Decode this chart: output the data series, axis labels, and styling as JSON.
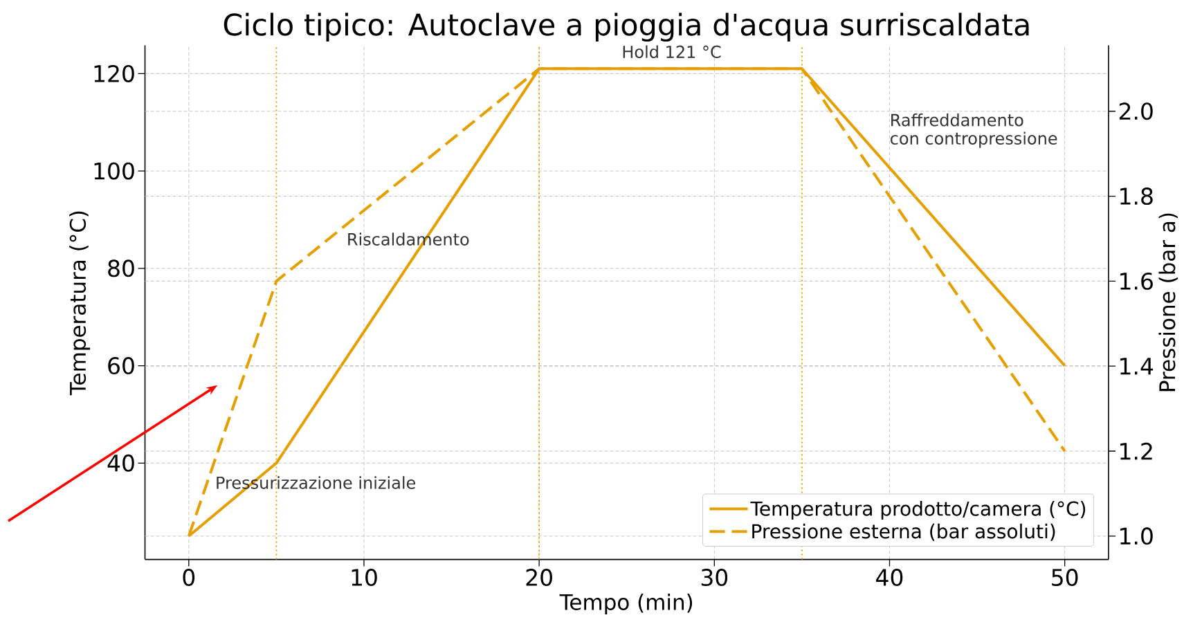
{
  "chart_data": {
    "type": "line",
    "title": "Ciclo tipico: Autoclave a pioggia d'acqua surriscaldata",
    "xlabel": "Tempo (min)",
    "ylabel": "Temperatura (°C)",
    "y2label": "Pressione (bar a)",
    "x": [
      0,
      5,
      20,
      35,
      50
    ],
    "series": [
      {
        "name": "Temperatura prodotto/camera (°C)",
        "color": "#e69f00",
        "line_style": "solid",
        "values": [
          25,
          40,
          121,
          121,
          60
        ]
      },
      {
        "name": "Pressione esterna (bar assoluti)",
        "color": "#e69f00",
        "line_style": "dashed",
        "axis": "y2",
        "values": [
          1.0,
          1.6,
          2.1,
          2.1,
          1.2
        ]
      }
    ],
    "xlim": [
      -2.5,
      52.5
    ],
    "xticks": [
      0,
      10,
      20,
      30,
      40,
      50
    ],
    "ylim": [
      20.2,
      125.8
    ],
    "yticks": [
      40,
      60,
      80,
      100,
      120
    ],
    "y2lim": [
      0.945,
      2.155
    ],
    "y2ticks": [
      {
        "value": 1.0,
        "label": "1.0"
      },
      1.2,
      1.4,
      1.6,
      1.8,
      {
        "value": 2.0,
        "label": "2.0"
      }
    ],
    "ref_lines": [
      {
        "axis": "x",
        "value": 5,
        "color": "#e69f00",
        "line_style": "dotted"
      },
      {
        "axis": "x",
        "value": 20,
        "color": "#e69f00",
        "line_style": "dotted"
      },
      {
        "axis": "x",
        "value": 35,
        "color": "#e69f00",
        "line_style": "dotted"
      }
    ],
    "annotations": [
      "Pressurizzazione iniziale",
      "Riscaldamento",
      "Hold 121 °C",
      "Raffreddamento",
      "con contropressione"
    ],
    "grid": true,
    "legend": "bottom right",
    "marker": "none"
  }
}
